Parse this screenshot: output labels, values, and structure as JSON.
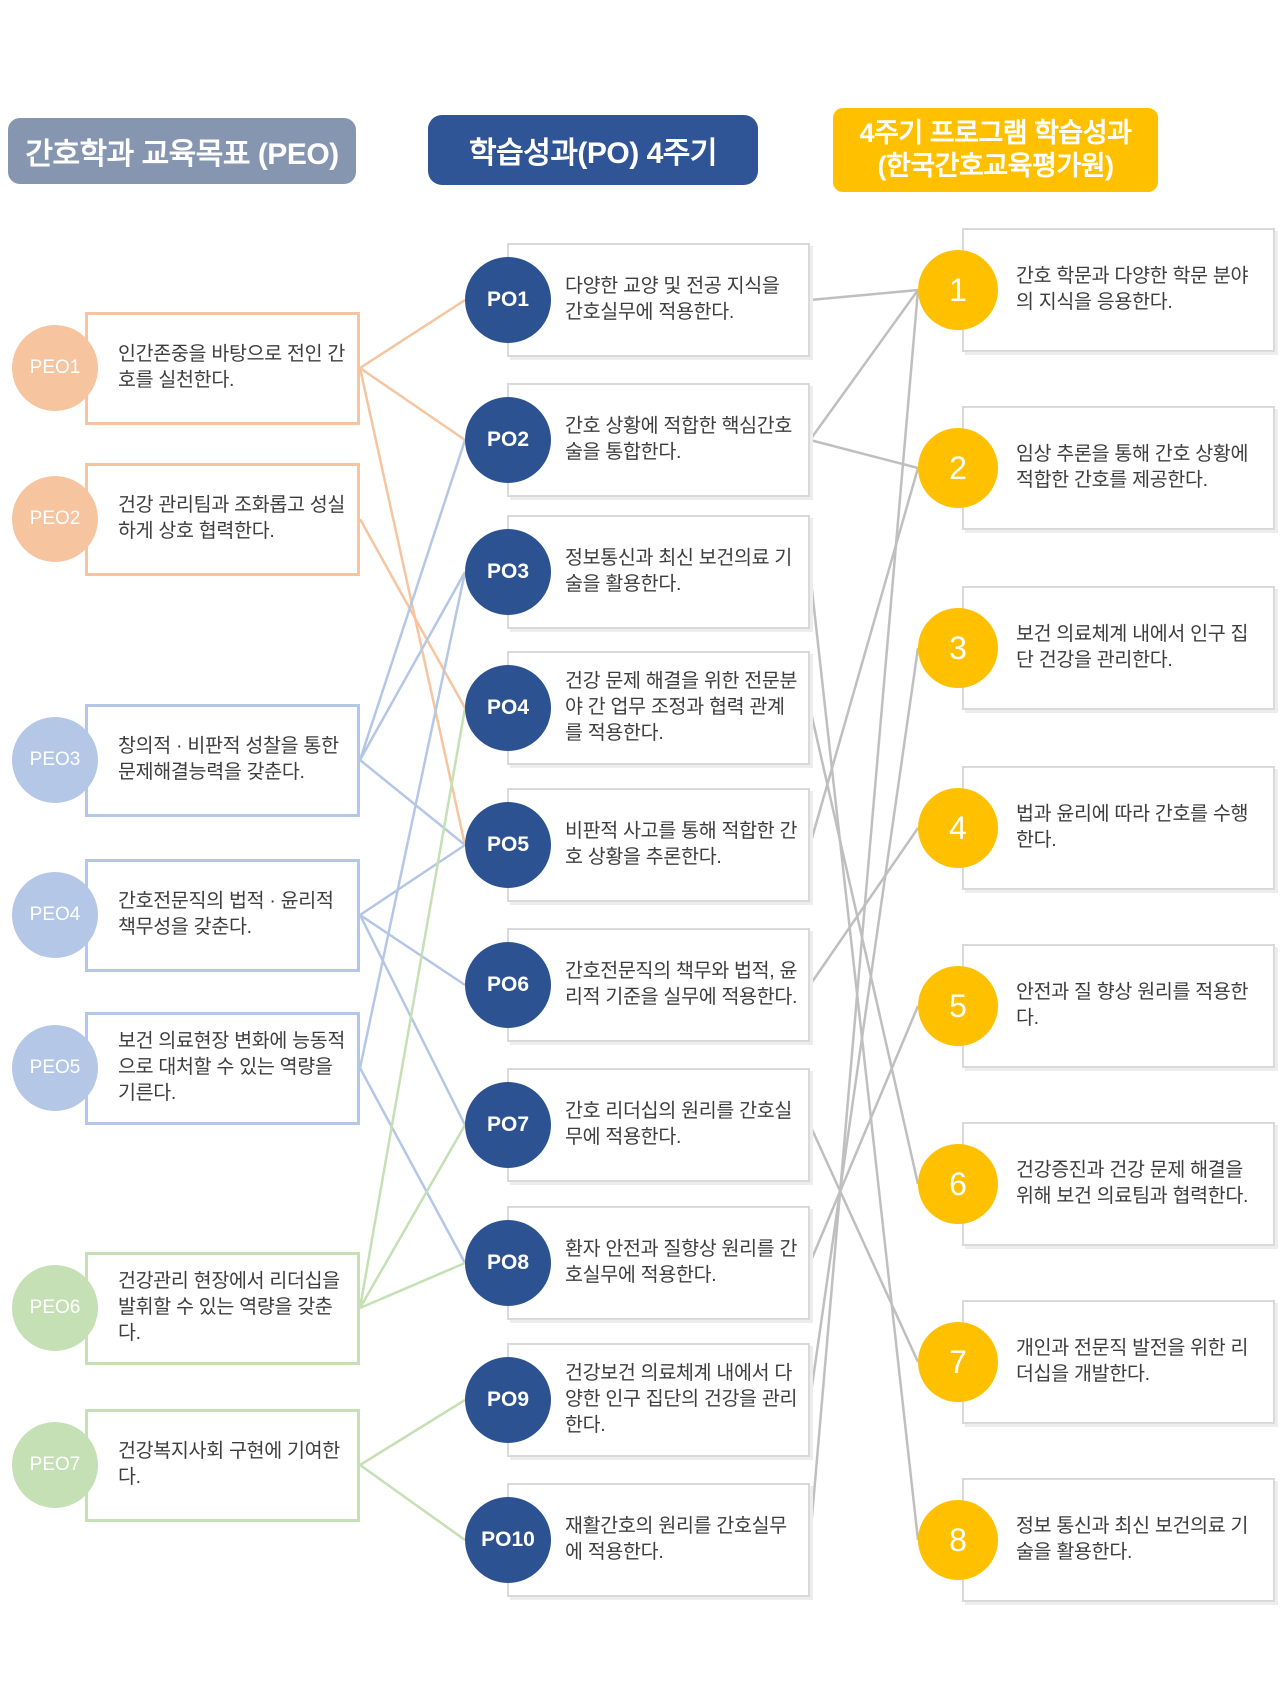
{
  "headers": {
    "left": "간호학과 교육목표 (PEO)",
    "middle": "학습성과(PO) 4주기",
    "right_line1": "4주기 프로그램 학습성과",
    "right_line2": "(한국간호교육평가원)"
  },
  "colors": {
    "header_left_bg": "#8796B0",
    "header_mid_bg": "#2F5597",
    "header_right_bg": "#FFC000",
    "peo_groups": {
      "peach": "#F6C5A0",
      "blue": "#B4C7E7",
      "green": "#C5E0B4"
    },
    "po_circle": "#2C5291",
    "outcome_circle": "#FFC000",
    "gray_line": "#BFBFBF",
    "box_border_gray": "#D9D9D9",
    "text": "#3E3E3E"
  },
  "peo": {
    "items": [
      {
        "id": "PEO1",
        "label": "PEO1",
        "group": "peach",
        "text": "인간존중을 바탕으로 전인 간호를 실천한다."
      },
      {
        "id": "PEO2",
        "label": "PEO2",
        "group": "peach",
        "text": "건강 관리팀과 조화롭고 성실하게 상호 협력한다."
      },
      {
        "id": "PEO3",
        "label": "PEO3",
        "group": "blue",
        "text": "창의적 · 비판적 성찰을 통한 문제해결능력을 갖춘다."
      },
      {
        "id": "PEO4",
        "label": "PEO4",
        "group": "blue",
        "text": "간호전문직의 법적 · 윤리적 책무성을 갖춘다."
      },
      {
        "id": "PEO5",
        "label": "PEO5",
        "group": "blue",
        "text": "보건 의료현장 변화에 능동적으로 대처할 수 있는 역량을 기른다."
      },
      {
        "id": "PEO6",
        "label": "PEO6",
        "group": "green",
        "text": "건강관리 현장에서 리더십을 발휘할 수 있는 역량을 갖춘다."
      },
      {
        "id": "PEO7",
        "label": "PEO7",
        "group": "green",
        "text": "건강복지사회 구현에 기여한다."
      }
    ]
  },
  "po": {
    "items": [
      {
        "id": "PO1",
        "label": "PO1",
        "text": "다양한 교양 및 전공 지식을 간호실무에 적용한다."
      },
      {
        "id": "PO2",
        "label": "PO2",
        "text": "간호 상황에 적합한 핵심간호술을 통합한다."
      },
      {
        "id": "PO3",
        "label": "PO3",
        "text": "정보통신과 최신 보건의료 기술을 활용한다."
      },
      {
        "id": "PO4",
        "label": "PO4",
        "text": "건강 문제 해결을 위한 전문분야 간 업무 조정과 협력 관계를 적용한다."
      },
      {
        "id": "PO5",
        "label": "PO5",
        "text": "비판적 사고를 통해 적합한 간호 상황을 추론한다."
      },
      {
        "id": "PO6",
        "label": "PO6",
        "text": "간호전문직의 책무와 법적, 윤리적 기준을 실무에 적용한다."
      },
      {
        "id": "PO7",
        "label": "PO7",
        "text": "간호 리더십의 원리를 간호실무에 적용한다."
      },
      {
        "id": "PO8",
        "label": "PO8",
        "text": "환자 안전과 질향상 원리를 간호실무에 적용한다."
      },
      {
        "id": "PO9",
        "label": "PO9",
        "text": "건강보건 의료체계 내에서 다양한 인구 집단의 건강을 관리한다."
      },
      {
        "id": "PO10",
        "label": "PO10",
        "text": "재활간호의 원리를 간호실무에 적용한다."
      }
    ]
  },
  "outcomes": {
    "items": [
      {
        "id": "R1",
        "label": "1",
        "text": "간호 학문과 다양한 학문 분야의 지식을 응용한다."
      },
      {
        "id": "R2",
        "label": "2",
        "text": "임상 추론을 통해 간호 상황에 적합한 간호를 제공한다."
      },
      {
        "id": "R3",
        "label": "3",
        "text": "보건 의료체계 내에서 인구 집단 건강을 관리한다."
      },
      {
        "id": "R4",
        "label": "4",
        "text": "법과 윤리에 따라 간호를 수행한다."
      },
      {
        "id": "R5",
        "label": "5",
        "text": "안전과 질 향상 원리를 적용한다."
      },
      {
        "id": "R6",
        "label": "6",
        "text": "건강증진과 건강 문제 해결을 위해 보건 의료팀과 협력한다."
      },
      {
        "id": "R7",
        "label": "7",
        "text": "개인과 전문직 발전을 위한 리더십을 개발한다."
      },
      {
        "id": "R8",
        "label": "8",
        "text": "정보 통신과 최신 보건의료 기술을 활용한다."
      }
    ]
  },
  "links": {
    "peo_po": [
      {
        "from": "PEO1",
        "to": "PO1"
      },
      {
        "from": "PEO1",
        "to": "PO2"
      },
      {
        "from": "PEO1",
        "to": "PO5"
      },
      {
        "from": "PEO2",
        "to": "PO4"
      },
      {
        "from": "PEO3",
        "to": "PO2"
      },
      {
        "from": "PEO3",
        "to": "PO3"
      },
      {
        "from": "PEO3",
        "to": "PO5"
      },
      {
        "from": "PEO4",
        "to": "PO5"
      },
      {
        "from": "PEO4",
        "to": "PO6"
      },
      {
        "from": "PEO4",
        "to": "PO7"
      },
      {
        "from": "PEO5",
        "to": "PO3"
      },
      {
        "from": "PEO5",
        "to": "PO8"
      },
      {
        "from": "PEO6",
        "to": "PO4"
      },
      {
        "from": "PEO6",
        "to": "PO7"
      },
      {
        "from": "PEO6",
        "to": "PO8"
      },
      {
        "from": "PEO7",
        "to": "PO9"
      },
      {
        "from": "PEO7",
        "to": "PO10"
      }
    ],
    "po_outcome": [
      {
        "from": "PO1",
        "to": "R1"
      },
      {
        "from": "PO2",
        "to": "R1"
      },
      {
        "from": "PO2",
        "to": "R2"
      },
      {
        "from": "PO3",
        "to": "R8"
      },
      {
        "from": "PO4",
        "to": "R6"
      },
      {
        "from": "PO5",
        "to": "R2"
      },
      {
        "from": "PO6",
        "to": "R4"
      },
      {
        "from": "PO7",
        "to": "R7"
      },
      {
        "from": "PO8",
        "to": "R5"
      },
      {
        "from": "PO9",
        "to": "R3"
      },
      {
        "from": "PO10",
        "to": "R1"
      }
    ]
  }
}
